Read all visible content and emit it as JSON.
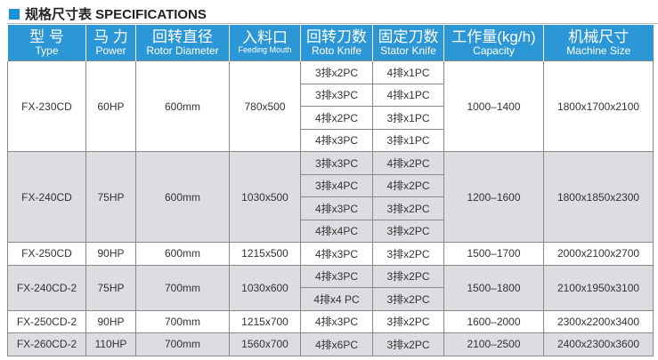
{
  "title": "规格尺寸表 SPECIFICATIONS",
  "headers": [
    {
      "zh": "型 号",
      "en": "Type"
    },
    {
      "zh": "马 力",
      "en": "Power"
    },
    {
      "zh": "回转直径",
      "en": "Rotor Diameter"
    },
    {
      "zh": "入料口",
      "en": "Feeding Mouth"
    },
    {
      "zh": "回转刀数",
      "en": "Roto Knife"
    },
    {
      "zh": "固定刀数",
      "en": "Stator Knife"
    },
    {
      "zh": "工作量(kg/h)",
      "en": "Capacity"
    },
    {
      "zh": "机械尺寸",
      "en": "Machine Size"
    }
  ],
  "rows": [
    {
      "type": "FX-230CD",
      "power": "60HP",
      "rotor": "600mm",
      "feed": "780x500",
      "knives": [
        [
          "3排x2PC",
          "4排x1PC"
        ],
        [
          "3排x3PC",
          "4排x1PC"
        ],
        [
          "4排x2PC",
          "3排x1PC"
        ],
        [
          "4排x3PC",
          "3排x1PC"
        ]
      ],
      "capacity": "1000–1400",
      "size": "1800x1700x2100"
    },
    {
      "type": "FX-240CD",
      "power": "75HP",
      "rotor": "600mm",
      "feed": "1030x500",
      "knives": [
        [
          "3排x3PC",
          "4排x2PC"
        ],
        [
          "3排x4PC",
          "4排x2PC"
        ],
        [
          "4排x3PC",
          "3排x2PC"
        ],
        [
          "4排x4PC",
          "3排x2PC"
        ]
      ],
      "capacity": "1200–1600",
      "size": "1800x1850x2300"
    },
    {
      "type": "FX-250CD",
      "power": "90HP",
      "rotor": "600mm",
      "feed": "1215x500",
      "knives": [
        [
          "4排x3PC",
          "3排x2PC"
        ]
      ],
      "capacity": "1500–1700",
      "size": "2000x2100x2700"
    },
    {
      "type": "FX-240CD-2",
      "power": "75HP",
      "rotor": "700mm",
      "feed": "1030x600",
      "knives": [
        [
          "4排x3PC",
          "3排x2PC"
        ],
        [
          "4排x4 PC",
          "3排x2PC"
        ]
      ],
      "capacity": "1500–1800",
      "size": "2100x1950x3100"
    },
    {
      "type": "FX-250CD-2",
      "power": "90HP",
      "rotor": "700mm",
      "feed": "1215x700",
      "knives": [
        [
          "4排x3PC",
          "3排x2PC"
        ]
      ],
      "capacity": "1600–2000",
      "size": "2300x2200x3400"
    },
    {
      "type": "FX-260CD-2",
      "power": "110HP",
      "rotor": "700mm",
      "feed": "1560x700",
      "knives": [
        [
          "4排x6PC",
          "3排x2PC"
        ]
      ],
      "capacity": "2100–2500",
      "size": "2400x2300x3600"
    }
  ]
}
